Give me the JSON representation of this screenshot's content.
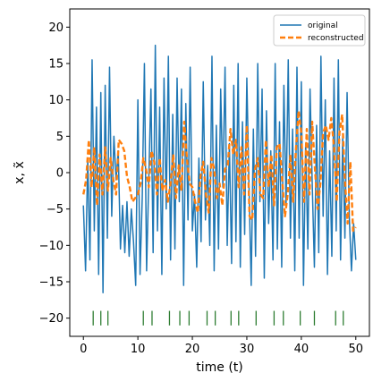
{
  "chart_data": {
    "type": "line",
    "xlabel": "time (t)",
    "ylabel": "x, x̃",
    "xlim": [
      -2.5,
      52.5
    ],
    "ylim": [
      -22.5,
      22.5
    ],
    "xticks": [
      0,
      10,
      20,
      30,
      40,
      50
    ],
    "yticks": [
      -20,
      -15,
      -10,
      -5,
      0,
      5,
      10,
      15,
      20
    ],
    "legend_position": "top-right",
    "series": [
      {
        "name": "original",
        "color": "#1f77b4",
        "style": "solid",
        "x": [
          0.0,
          0.4,
          0.8,
          1.2,
          1.6,
          2.0,
          2.4,
          2.8,
          3.2,
          3.6,
          4.0,
          4.4,
          4.8,
          5.2,
          5.6,
          6.0,
          6.4,
          6.8,
          7.2,
          7.6,
          8.0,
          8.4,
          8.8,
          9.2,
          9.6,
          10.0,
          10.4,
          10.8,
          11.2,
          11.6,
          12.0,
          12.4,
          12.8,
          13.2,
          13.6,
          14.0,
          14.4,
          14.8,
          15.2,
          15.6,
          16.0,
          16.4,
          16.8,
          17.2,
          17.6,
          18.0,
          18.4,
          18.8,
          19.2,
          19.6,
          20.0,
          20.4,
          20.8,
          21.2,
          21.6,
          22.0,
          22.4,
          22.8,
          23.2,
          23.6,
          24.0,
          24.4,
          24.8,
          25.2,
          25.6,
          26.0,
          26.4,
          26.8,
          27.2,
          27.6,
          28.0,
          28.4,
          28.8,
          29.2,
          29.6,
          30.0,
          30.4,
          30.8,
          31.2,
          31.6,
          32.0,
          32.4,
          32.8,
          33.2,
          33.6,
          34.0,
          34.4,
          34.8,
          35.2,
          35.6,
          36.0,
          36.4,
          36.8,
          37.2,
          37.6,
          38.0,
          38.4,
          38.8,
          39.2,
          39.6,
          40.0,
          40.4,
          40.8,
          41.2,
          41.6,
          42.0,
          42.4,
          42.8,
          43.2,
          43.6,
          44.0,
          44.4,
          44.8,
          45.2,
          45.6,
          46.0,
          46.4,
          46.8,
          47.2,
          47.6,
          48.0,
          48.4,
          48.8,
          49.2,
          49.6,
          50.0
        ],
        "y": [
          -4.5,
          -13.5,
          2.0,
          -12.0,
          15.5,
          -8.0,
          9.0,
          -14.0,
          11.0,
          -16.5,
          12.0,
          -9.0,
          14.5,
          -6.0,
          5.0,
          -1.0,
          3.0,
          -10.5,
          -4.5,
          -11.0,
          -4.0,
          -11.5,
          -5.0,
          -9.5,
          -15.5,
          10.0,
          -14.0,
          -3.5,
          15.0,
          -13.5,
          -1.0,
          11.5,
          -11.0,
          17.5,
          -8.0,
          9.0,
          -14.0,
          13.0,
          -5.0,
          16.0,
          -12.0,
          8.0,
          -10.5,
          13.0,
          -4.0,
          11.5,
          -15.5,
          9.5,
          -6.5,
          14.5,
          -8.0,
          -3.0,
          -13.0,
          2.0,
          -9.5,
          12.5,
          -6.5,
          1.0,
          -10.0,
          16.0,
          -13.5,
          6.5,
          -10.5,
          11.5,
          -2.0,
          14.5,
          -10.0,
          4.0,
          -12.5,
          12.0,
          -9.5,
          15.0,
          -13.0,
          7.0,
          -8.5,
          13.0,
          -2.0,
          -15.5,
          6.0,
          -11.5,
          15.0,
          -4.0,
          11.5,
          -14.5,
          8.5,
          -7.0,
          3.0,
          -12.0,
          15.0,
          -10.5,
          7.0,
          -13.0,
          12.0,
          -4.5,
          15.5,
          -9.0,
          6.0,
          -13.5,
          14.5,
          -9.0,
          12.5,
          -15.5,
          4.0,
          -10.5,
          11.5,
          -1.5,
          -13.0,
          6.5,
          -11.0,
          16.0,
          -6.0,
          10.0,
          -14.0,
          3.0,
          -11.5,
          13.0,
          -8.0,
          15.5,
          -12.0,
          5.0,
          -9.0,
          11.0,
          -6.0,
          -13.5,
          -7.0,
          -12.0
        ]
      },
      {
        "name": "reconstructed",
        "color": "#ff7f0e",
        "style": "dashed",
        "x": [
          0.0,
          0.5,
          1.0,
          1.5,
          2.0,
          2.5,
          3.0,
          3.5,
          4.0,
          4.5,
          5.0,
          5.5,
          6.0,
          6.5,
          7.0,
          7.5,
          8.0,
          8.5,
          9.0,
          9.5,
          10.0,
          10.5,
          11.0,
          11.5,
          12.0,
          12.5,
          13.0,
          13.5,
          14.0,
          14.5,
          15.0,
          15.5,
          16.0,
          16.5,
          17.0,
          17.5,
          18.0,
          18.5,
          19.0,
          19.5,
          20.0,
          20.5,
          21.0,
          21.5,
          22.0,
          22.5,
          23.0,
          23.5,
          24.0,
          24.5,
          25.0,
          25.5,
          26.0,
          26.5,
          27.0,
          27.5,
          28.0,
          28.5,
          29.0,
          29.5,
          30.0,
          30.5,
          31.0,
          31.5,
          32.0,
          32.5,
          33.0,
          33.5,
          34.0,
          34.5,
          35.0,
          35.5,
          36.0,
          36.5,
          37.0,
          37.5,
          38.0,
          38.5,
          39.0,
          39.5,
          40.0,
          40.5,
          41.0,
          41.5,
          42.0,
          42.5,
          43.0,
          43.5,
          44.0,
          44.5,
          45.0,
          45.5,
          46.0,
          46.5,
          47.0,
          47.5,
          48.0,
          48.5,
          49.0,
          49.5,
          50.0
        ],
        "y": [
          -3.0,
          -1.0,
          4.5,
          -2.0,
          3.5,
          -4.5,
          2.5,
          -3.0,
          3.5,
          -2.5,
          2.0,
          -1.0,
          -3.0,
          4.5,
          4.0,
          3.0,
          -0.5,
          -2.0,
          -4.0,
          -3.5,
          -3.0,
          -1.5,
          2.0,
          0.5,
          -2.0,
          3.0,
          1.5,
          -3.0,
          2.0,
          -2.5,
          -1.0,
          -4.0,
          -1.5,
          2.5,
          -3.5,
          1.0,
          -2.5,
          7.0,
          2.0,
          -1.5,
          -2.0,
          -4.0,
          -5.5,
          -0.5,
          1.5,
          -3.0,
          -5.5,
          2.0,
          0.5,
          -3.5,
          -1.5,
          -4.5,
          0.5,
          1.0,
          6.0,
          2.5,
          4.5,
          -2.0,
          3.5,
          -3.0,
          6.5,
          -6.0,
          -6.5,
          0.5,
          2.0,
          -3.0,
          -3.5,
          4.5,
          -2.0,
          2.5,
          -4.5,
          3.5,
          4.0,
          -1.0,
          -6.0,
          -3.0,
          2.5,
          -4.0,
          3.0,
          8.5,
          5.5,
          -4.0,
          6.0,
          -3.0,
          7.0,
          0.5,
          -5.0,
          -1.5,
          5.5,
          6.5,
          4.5,
          7.5,
          3.5,
          -4.0,
          5.5,
          8.0,
          -1.0,
          -7.0,
          1.5,
          -8.0,
          -7.5
        ]
      }
    ],
    "event_markers": {
      "color": "#2e7d32",
      "y_range": [
        -21,
        -19
      ],
      "x": [
        1.8,
        3.2,
        4.5,
        11.0,
        12.6,
        15.8,
        17.7,
        19.4,
        22.7,
        24.2,
        27.1,
        28.5,
        31.7,
        35.0,
        36.7,
        39.8,
        42.4,
        46.3,
        47.7
      ]
    }
  }
}
